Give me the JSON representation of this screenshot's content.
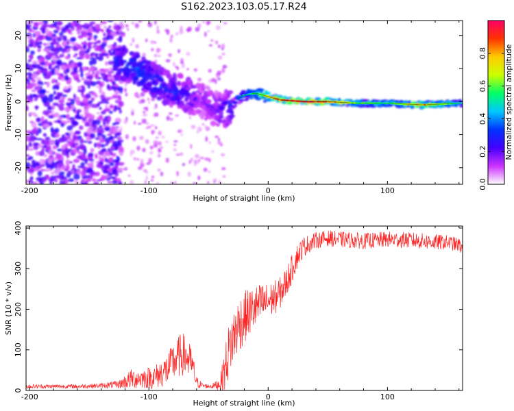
{
  "figure": {
    "title": "S162.2023.103.05.17.R24"
  },
  "chart_data": [
    {
      "type": "heatmap",
      "xlabel": "Height of straight line (km)",
      "ylabel": "Frequency (Hz)",
      "xlim": [
        -203,
        163
      ],
      "ylim": [
        -25,
        24.5
      ],
      "xticks": [
        -200,
        -100,
        0,
        100
      ],
      "yticks": [
        -20,
        -10,
        0,
        10,
        20
      ],
      "colorbar": {
        "label": "Normalized spectral amplitude",
        "range": [
          0.0,
          1.0
        ],
        "ticks": [
          0.0,
          0.2,
          0.4,
          0.6,
          0.8
        ],
        "colormap": [
          "#ffffff",
          "#cc33ff",
          "#4400ff",
          "#0033ff",
          "#00c8ff",
          "#00ff66",
          "#ccff00",
          "#ffcc00",
          "#ff3300",
          "#ff0066"
        ]
      },
      "ridge": {
        "x": [
          -125,
          -110,
          -95,
          -85,
          -75,
          -65,
          -55,
          -45,
          -38,
          -30,
          -25,
          -20,
          -10,
          0,
          10,
          30,
          50,
          75,
          100,
          130,
          160
        ],
        "y": [
          12,
          10,
          6,
          4,
          3,
          1.5,
          0,
          -2,
          -3,
          -1,
          1,
          2,
          2.5,
          1.5,
          0.5,
          0,
          0,
          -0.5,
          -0.5,
          -1,
          -0.5
        ],
        "amplitude": [
          0.35,
          0.4,
          0.35,
          0.3,
          0.3,
          0.25,
          0.2,
          0.2,
          0.25,
          0.3,
          0.35,
          0.45,
          0.55,
          0.75,
          0.9,
          1.0,
          0.95,
          0.6,
          0.55,
          0.85,
          0.5
        ]
      }
    },
    {
      "type": "line",
      "xlabel": "Height of straight line (km)",
      "ylabel": "SNR (10 * v/v)",
      "xlim": [
        -203,
        163
      ],
      "ylim": [
        0,
        405
      ],
      "xticks": [
        -200,
        -100,
        0,
        100
      ],
      "yticks": [
        0,
        100,
        200,
        300,
        400
      ],
      "series": [
        {
          "color": "#ff2222",
          "x": [
            -203,
            -180,
            -160,
            -140,
            -125,
            -115,
            -105,
            -95,
            -85,
            -78,
            -72,
            -68,
            -64,
            -60,
            -55,
            -50,
            -45,
            -40,
            -36,
            -32,
            -28,
            -24,
            -20,
            -15,
            -10,
            -5,
            0,
            5,
            10,
            15,
            20,
            25,
            30,
            40,
            50,
            60,
            80,
            100,
            120,
            140,
            150,
            160,
            163
          ],
          "y": [
            10,
            10,
            10,
            12,
            15,
            28,
            30,
            33,
            50,
            75,
            90,
            80,
            65,
            20,
            12,
            10,
            12,
            18,
            55,
            110,
            140,
            165,
            180,
            195,
            205,
            215,
            220,
            228,
            240,
            265,
            300,
            335,
            355,
            370,
            375,
            372,
            368,
            372,
            370,
            365,
            365,
            358,
            350
          ],
          "noise": [
            5,
            5,
            5,
            6,
            10,
            25,
            25,
            30,
            40,
            50,
            55,
            50,
            40,
            15,
            6,
            5,
            8,
            20,
            60,
            70,
            70,
            70,
            65,
            60,
            55,
            50,
            45,
            42,
            40,
            38,
            35,
            30,
            25,
            20,
            20,
            20,
            20,
            20,
            20,
            20,
            18,
            18,
            15
          ]
        }
      ]
    }
  ]
}
